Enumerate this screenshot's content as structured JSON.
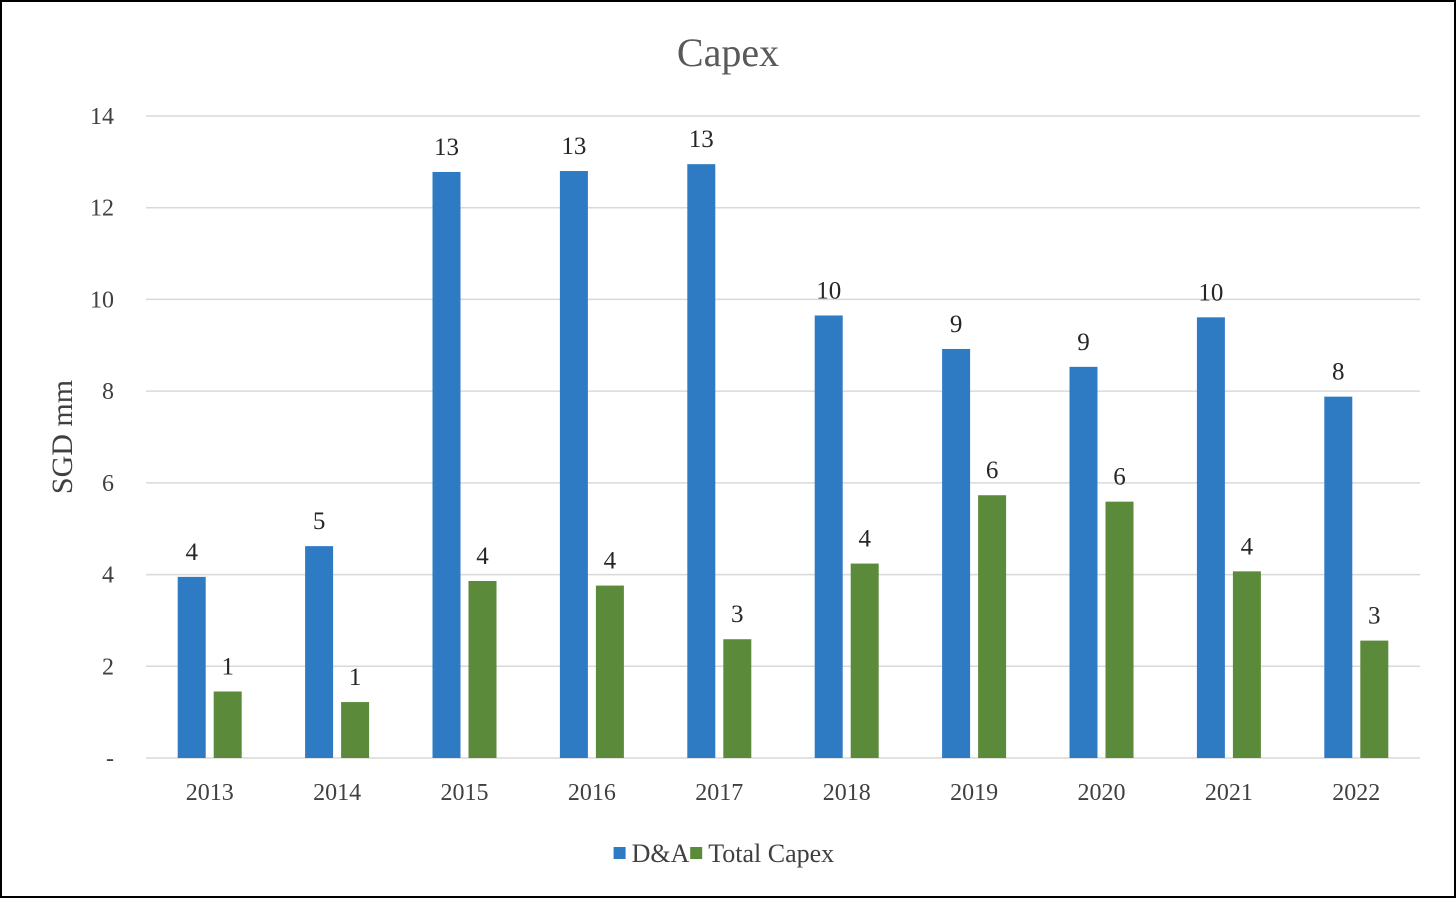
{
  "chart_data": {
    "type": "bar",
    "title": "Capex",
    "xlabel": "",
    "ylabel": "SGD mm",
    "ylim": [
      0,
      14
    ],
    "yticks": [
      0,
      2,
      4,
      6,
      8,
      10,
      12,
      14
    ],
    "ytick_labels": [
      "-",
      "2",
      "4",
      "6",
      "8",
      "10",
      "12",
      "14"
    ],
    "categories": [
      "2013",
      "2014",
      "2015",
      "2016",
      "2017",
      "2018",
      "2019",
      "2020",
      "2021",
      "2022"
    ],
    "series": [
      {
        "name": "D&A",
        "color": "#2e7bc4",
        "values": [
          3.95,
          4.62,
          12.78,
          12.8,
          12.95,
          9.65,
          8.92,
          8.53,
          9.61,
          7.88
        ],
        "labels": [
          "4",
          "5",
          "13",
          "13",
          "13",
          "10",
          "9",
          "9",
          "10",
          "8"
        ]
      },
      {
        "name": "Total Capex",
        "color": "#5a8a3a",
        "values": [
          1.45,
          1.22,
          3.86,
          3.76,
          2.59,
          4.24,
          5.73,
          5.59,
          4.07,
          2.56
        ],
        "labels": [
          "1",
          "1",
          "4",
          "4",
          "3",
          "4",
          "6",
          "6",
          "4",
          "3"
        ]
      }
    ],
    "grid": true,
    "legend_position": "bottom"
  }
}
